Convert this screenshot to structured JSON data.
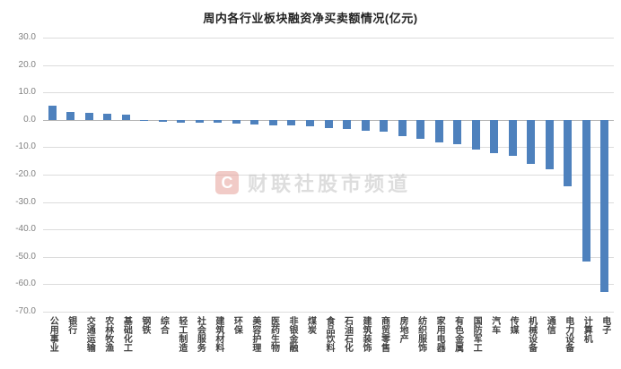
{
  "watermark": {
    "logo": "C",
    "text": "财联社股市频道"
  },
  "chart_data": {
    "type": "bar",
    "title": "周内各行业板块融资净买卖额情况(亿元)",
    "categories": [
      "公用事业",
      "银行",
      "交通运输",
      "农林牧渔",
      "基础化工",
      "钢铁",
      "综合",
      "轻工制造",
      "社会服务",
      "建筑材料",
      "环保",
      "美容护理",
      "医药生物",
      "非银金融",
      "煤炭",
      "食品饮料",
      "石油石化",
      "建筑装饰",
      "商贸零售",
      "房地产",
      "纺织服饰",
      "家用电器",
      "有色金属",
      "国防军工",
      "汽车",
      "传媒",
      "机械设备",
      "通信",
      "电力设备",
      "计算机",
      "电子"
    ],
    "values": [
      5.2,
      3.0,
      2.6,
      2.2,
      2.0,
      -0.5,
      -0.7,
      -0.9,
      -1.0,
      -1.2,
      -1.4,
      -1.6,
      -1.9,
      -2.1,
      -2.5,
      -3.0,
      -3.4,
      -3.9,
      -4.4,
      -5.9,
      -7.0,
      -8.1,
      -9.0,
      -11.0,
      -12.1,
      -13.2,
      -16.0,
      -18.2,
      -24.3,
      -51.8,
      -62.9
    ],
    "ylim": [
      -70,
      30
    ],
    "ytick_labels": [
      "30.0",
      "20.0",
      "10.0",
      "0.0",
      "-10.0",
      "-20.0",
      "-30.0",
      "-40.0",
      "-50.0",
      "-60.0",
      "-70.0"
    ],
    "xlabel": "",
    "ylabel": "",
    "legend": "none",
    "grid": "horizontal",
    "bar_color": "#4E81BD",
    "grid_color": "#dcdcdc",
    "zero_line_color": "#b5b5b5",
    "axis_label_color": "#808080",
    "x_label_color": "#404040",
    "title_color": "#222222"
  }
}
